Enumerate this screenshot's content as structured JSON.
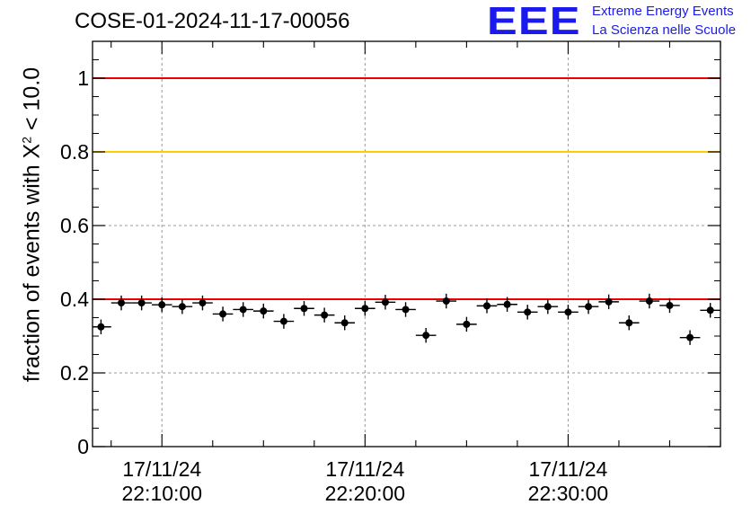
{
  "header": {
    "title": "COSE-01-2024-11-17-00056",
    "logo_mark": "EEE",
    "logo_line1": "Extreme Energy Events",
    "logo_line2": "La Scienza nelle Scuole"
  },
  "chart_data": {
    "type": "scatter",
    "ylabel_pre": "fraction of events with X",
    "ylabel_sup": "2",
    "ylabel_post": " < 10.0",
    "ylim": [
      0,
      1.1
    ],
    "yticks": [
      0,
      0.2,
      0.4,
      0.6,
      0.8,
      1
    ],
    "ytick_labels": [
      "0",
      "0.2",
      "0.4",
      "0.6",
      "0.8",
      "1"
    ],
    "xticks": [
      {
        "time": "22:10:00",
        "date": "17/11/24"
      },
      {
        "time": "22:20:00",
        "date": "17/11/24"
      },
      {
        "time": "22:30:00",
        "date": "17/11/24"
      }
    ],
    "xlim": [
      "22:06:35",
      "22:37:30"
    ],
    "grid": true,
    "reference_lines": [
      {
        "y": 1.0,
        "color": "#ee0000"
      },
      {
        "y": 0.8,
        "color": "#ffcc00"
      },
      {
        "y": 0.4,
        "color": "#ee0000"
      }
    ],
    "series": [
      {
        "marker_color": "#000000",
        "x": [
          "22:07:00",
          "22:08:00",
          "22:09:00",
          "22:10:00",
          "22:11:00",
          "22:12:00",
          "22:13:00",
          "22:14:00",
          "22:15:00",
          "22:16:00",
          "22:17:00",
          "22:18:00",
          "22:19:00",
          "22:20:00",
          "22:21:00",
          "22:22:00",
          "22:23:00",
          "22:24:00",
          "22:25:00",
          "22:26:00",
          "22:27:00",
          "22:28:00",
          "22:29:00",
          "22:30:00",
          "22:31:00",
          "22:32:00",
          "22:33:00",
          "22:34:00",
          "22:35:00",
          "22:36:00",
          "22:37:00"
        ],
        "y": [
          0.325,
          0.39,
          0.39,
          0.385,
          0.38,
          0.39,
          0.36,
          0.372,
          0.368,
          0.34,
          0.375,
          0.357,
          0.336,
          0.375,
          0.392,
          0.372,
          0.302,
          0.395,
          0.332,
          0.382,
          0.386,
          0.365,
          0.38,
          0.365,
          0.38,
          0.393,
          0.336,
          0.395,
          0.383,
          0.296,
          0.37
        ],
        "yerr": 0.02
      }
    ]
  }
}
